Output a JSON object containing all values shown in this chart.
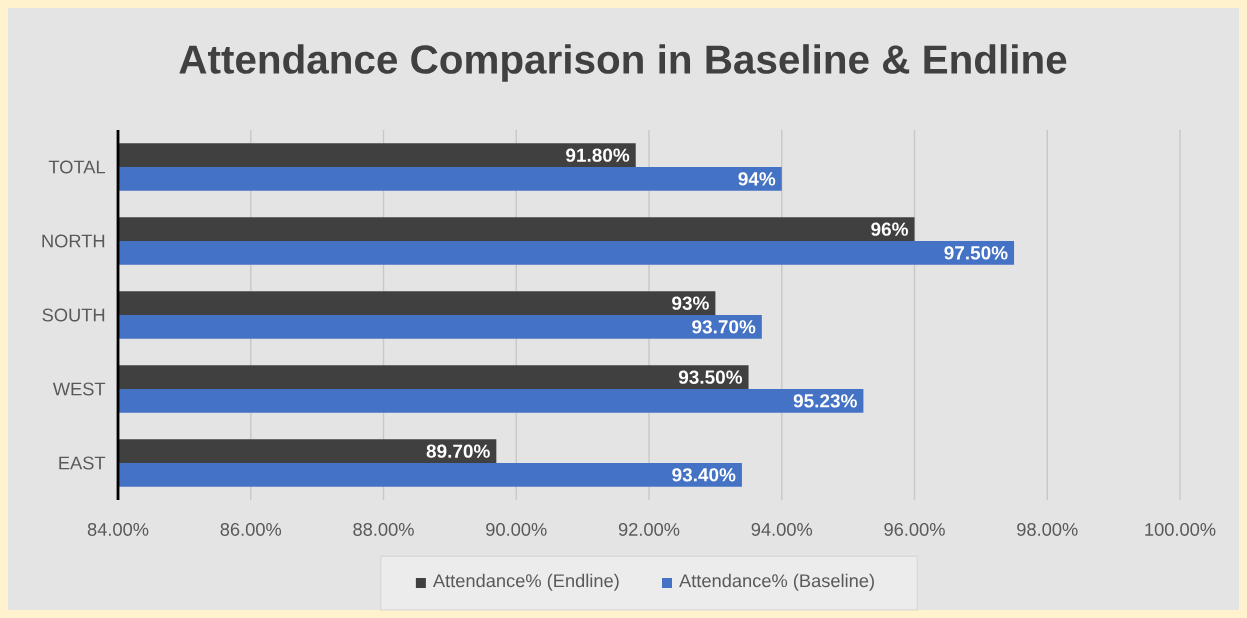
{
  "chart_data": {
    "type": "bar",
    "orientation": "horizontal",
    "title": "Attendance Comparison in Baseline & Endline",
    "categories": [
      "TOTAL",
      "NORTH",
      "SOUTH",
      "WEST",
      "EAST"
    ],
    "series": [
      {
        "name": "Attendance% (Endline)",
        "color": "#404040",
        "values": [
          91.8,
          96,
          93,
          93.5,
          89.7
        ],
        "value_labels": [
          "91.80%",
          "96%",
          "93%",
          "93.50%",
          "89.70%"
        ]
      },
      {
        "name": "Attendance% (Baseline)",
        "color": "#4472c4",
        "values": [
          94,
          97.5,
          93.7,
          95.23,
          93.4
        ],
        "value_labels": [
          "94%",
          "97.50%",
          "93.70%",
          "95.23%",
          "93.40%"
        ]
      }
    ],
    "xlim": [
      84,
      100
    ],
    "xticks": [
      {
        "value": 84,
        "label": "84.00%"
      },
      {
        "value": 86,
        "label": "86.00%"
      },
      {
        "value": 88,
        "label": "88.00%"
      },
      {
        "value": 90,
        "label": "90.00%"
      },
      {
        "value": 92,
        "label": "92.00%"
      },
      {
        "value": 94,
        "label": "94.00%"
      },
      {
        "value": 96,
        "label": "96.00%"
      },
      {
        "value": 98,
        "label": "98.00%"
      },
      {
        "value": 100,
        "label": "100.00%"
      }
    ],
    "grid": "x",
    "legend": "bottom"
  }
}
